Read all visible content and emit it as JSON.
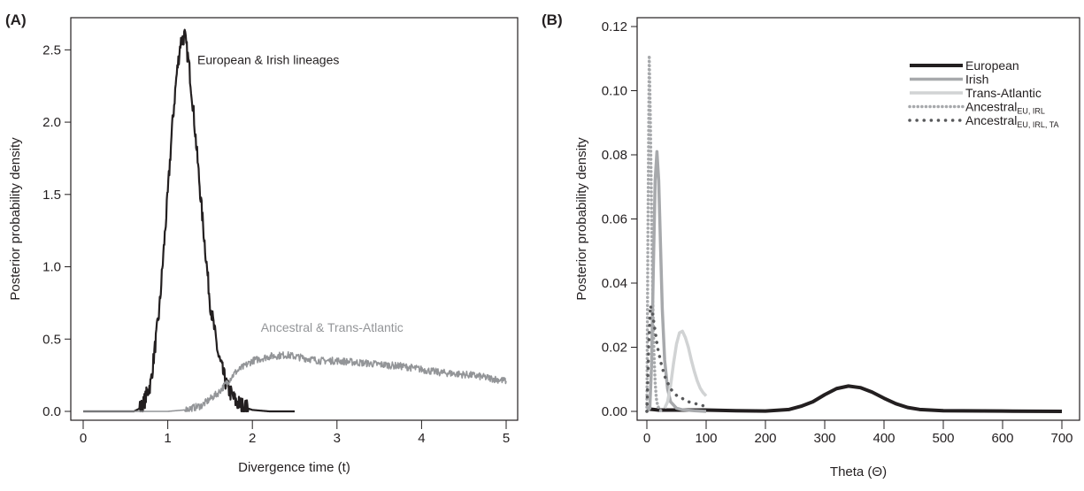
{
  "chart_data": [
    {
      "panel_label": "(A)",
      "type": "line",
      "xlabel": "Divergence time (t)",
      "ylabel": "Posterior probability density",
      "xlim": [
        0,
        5
      ],
      "ylim": [
        0,
        2.6
      ],
      "xticks": [
        0,
        1,
        2,
        3,
        4,
        5
      ],
      "yticks": [
        0.0,
        0.5,
        1.0,
        1.5,
        2.0,
        2.5
      ],
      "xtick_labels": [
        "0",
        "1",
        "2",
        "3",
        "4",
        "5"
      ],
      "ytick_labels": [
        "0.0",
        "0.5",
        "1.0",
        "1.5",
        "2.0",
        "2.5"
      ],
      "grid": false,
      "series": [
        {
          "name": "European & Irish lineages",
          "color": "#231f20",
          "x": [
            0,
            0.6,
            0.7,
            0.8,
            0.9,
            1.0,
            1.05,
            1.1,
            1.15,
            1.2,
            1.25,
            1.3,
            1.4,
            1.5,
            1.6,
            1.7,
            1.8,
            1.9,
            2.0,
            2.2,
            2.5
          ],
          "y": [
            0,
            0,
            0.03,
            0.2,
            0.7,
            1.5,
            1.95,
            2.3,
            2.55,
            2.6,
            2.4,
            2.1,
            1.4,
            0.75,
            0.38,
            0.17,
            0.07,
            0.03,
            0.01,
            0,
            0
          ]
        },
        {
          "name": "Ancestral & Trans-Atlantic",
          "color": "#939598",
          "x": [
            0,
            1.0,
            1.2,
            1.4,
            1.6,
            1.8,
            2.0,
            2.2,
            2.4,
            2.6,
            2.8,
            3.0,
            3.2,
            3.4,
            3.6,
            3.8,
            4.0,
            4.2,
            4.4,
            4.6,
            4.8,
            5.0
          ],
          "y": [
            0,
            0,
            0.01,
            0.04,
            0.13,
            0.27,
            0.35,
            0.38,
            0.39,
            0.37,
            0.35,
            0.35,
            0.34,
            0.33,
            0.32,
            0.31,
            0.29,
            0.27,
            0.26,
            0.25,
            0.23,
            0.21
          ]
        }
      ],
      "annotations": [
        {
          "text": "European & Irish lineages",
          "x": 1.35,
          "y": 2.4
        },
        {
          "text": "Ancestral & Trans-Atlantic",
          "x": 2.1,
          "y": 0.55
        }
      ]
    },
    {
      "panel_label": "(B)",
      "type": "line",
      "xlabel": "Theta (Θ)",
      "ylabel": "Posterior probability density",
      "xlim": [
        0,
        700
      ],
      "ylim": [
        0,
        0.12
      ],
      "xticks": [
        0,
        100,
        200,
        300,
        400,
        500,
        600,
        700
      ],
      "yticks": [
        0.0,
        0.02,
        0.04,
        0.06,
        0.08,
        0.1,
        0.12
      ],
      "xtick_labels": [
        "0",
        "100",
        "200",
        "300",
        "400",
        "500",
        "600",
        "700"
      ],
      "ytick_labels": [
        "0.00",
        "0.02",
        "0.04",
        "0.06",
        "0.08",
        "0.10",
        "0.12"
      ],
      "grid": false,
      "legend_position": "top-right",
      "series": [
        {
          "name": "European",
          "color": "#231f20",
          "style": "solid-thick",
          "x": [
            0,
            20,
            60,
            100,
            150,
            200,
            240,
            260,
            280,
            300,
            320,
            340,
            360,
            380,
            400,
            420,
            440,
            460,
            500,
            600,
            700
          ],
          "y": [
            0.0008,
            0.0004,
            0.0004,
            0.0004,
            0.0002,
            0.0001,
            0.0006,
            0.0016,
            0.003,
            0.0052,
            0.0071,
            0.0079,
            0.0074,
            0.006,
            0.0041,
            0.0024,
            0.0012,
            0.0006,
            0.0002,
            0.0001,
            0
          ]
        },
        {
          "name": "Irish",
          "color": "#a7a9ac",
          "style": "solid",
          "x": [
            0,
            5,
            8,
            11,
            14,
            17,
            20,
            23,
            26,
            30,
            35,
            40,
            50,
            60,
            80,
            100
          ],
          "y": [
            0,
            0.001,
            0.015,
            0.045,
            0.072,
            0.081,
            0.072,
            0.052,
            0.032,
            0.016,
            0.007,
            0.003,
            0.001,
            0.0005,
            0.0002,
            0
          ]
        },
        {
          "name": "Trans-Atlantic",
          "color": "#d1d3d4",
          "style": "solid",
          "x": [
            30,
            35,
            40,
            45,
            50,
            55,
            60,
            65,
            70,
            75,
            80,
            85,
            90,
            95,
            100
          ],
          "y": [
            0.001,
            0.003,
            0.008,
            0.015,
            0.021,
            0.0245,
            0.025,
            0.023,
            0.02,
            0.016,
            0.0125,
            0.0095,
            0.0072,
            0.0058,
            0.0048
          ]
        },
        {
          "name": "Ancestral",
          "name_subscript": "EU, IRL",
          "color": "#a7a9ac",
          "style": "dotted-dense",
          "x": [
            0,
            2,
            4,
            6,
            8,
            10,
            12,
            14,
            16,
            18,
            20,
            22,
            25
          ],
          "y": [
            0.0,
            0.06,
            0.111,
            0.09,
            0.06,
            0.035,
            0.018,
            0.009,
            0.004,
            0.002,
            0.001,
            0.0005,
            0
          ]
        },
        {
          "name": "Ancestral",
          "name_subscript": "EU, IRL, TA",
          "color": "#58595b",
          "style": "dotted-sparse",
          "x": [
            0,
            3,
            6,
            10,
            14,
            18,
            24,
            30,
            40,
            50,
            60,
            70,
            80,
            90,
            100
          ],
          "y": [
            0.0,
            0.02,
            0.033,
            0.03,
            0.025,
            0.02,
            0.015,
            0.011,
            0.007,
            0.005,
            0.004,
            0.003,
            0.0025,
            0.002,
            0.0015
          ]
        }
      ]
    }
  ]
}
